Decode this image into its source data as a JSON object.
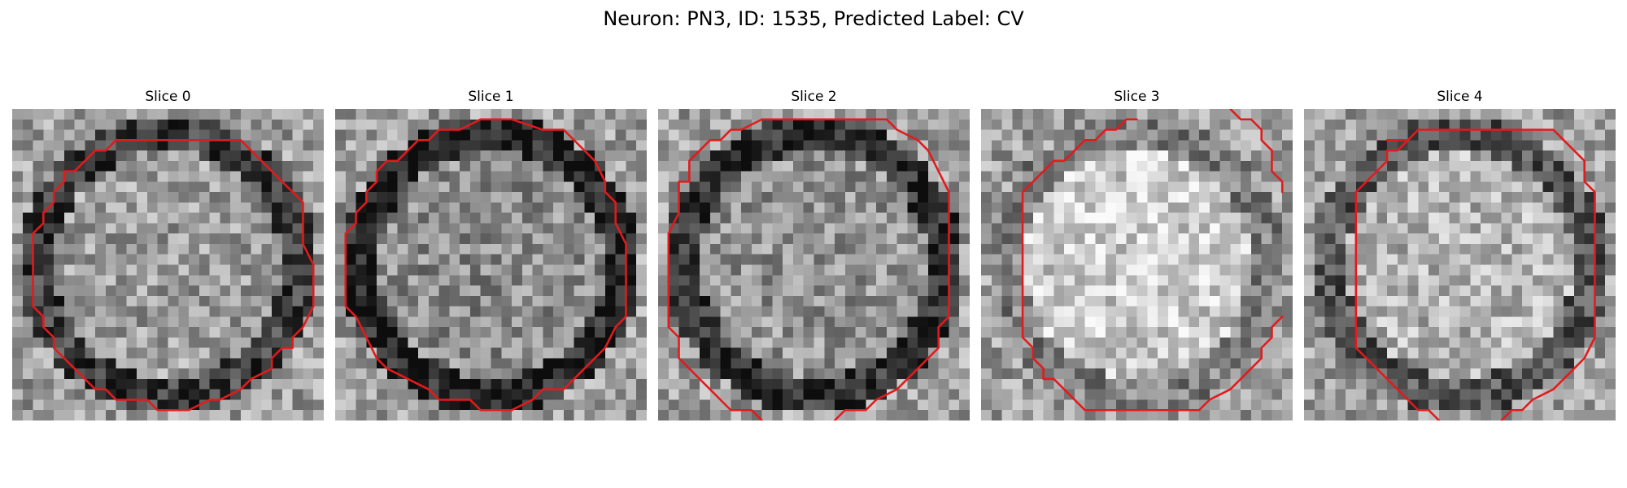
{
  "figure": {
    "title": "Neuron: PN3, ID: 1535, Predicted Label: CV"
  },
  "colors": {
    "contour": "#e31a1c",
    "background": "#ffffff"
  },
  "panels": [
    {
      "title": "Slice 0",
      "seed": 11,
      "center_brightness": 0.62,
      "ring_darkness": 0.38
    },
    {
      "title": "Slice 1",
      "seed": 23,
      "center_brightness": 0.55,
      "ring_darkness": 0.42
    },
    {
      "title": "Slice 2",
      "seed": 37,
      "center_brightness": 0.58,
      "ring_darkness": 0.4
    },
    {
      "title": "Slice 3",
      "seed": 49,
      "center_brightness": 0.8,
      "ring_darkness": 0.3
    },
    {
      "title": "Slice 4",
      "seed": 61,
      "center_brightness": 0.7,
      "ring_darkness": 0.36
    }
  ]
}
